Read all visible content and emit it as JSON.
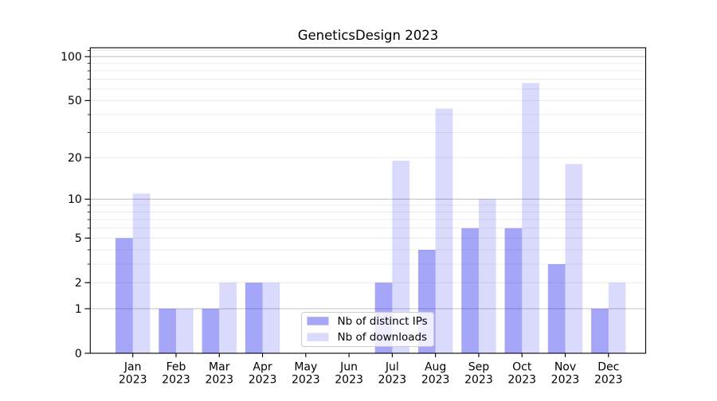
{
  "chart_data": {
    "type": "bar",
    "title": "GeneticsDesign 2023",
    "x_year_label": "2023",
    "categories": [
      "Jan",
      "Feb",
      "Mar",
      "Apr",
      "May",
      "Jun",
      "Jul",
      "Aug",
      "Sep",
      "Oct",
      "Nov",
      "Dec"
    ],
    "series": [
      {
        "name": "Nb of distinct IPs",
        "fill": "rgba(0,0,238,0.35)",
        "solid_hex": "#a6a6f9",
        "values": [
          5,
          1,
          1,
          2,
          0,
          0,
          2,
          4,
          6,
          6,
          3,
          1
        ]
      },
      {
        "name": "Nb of downloads",
        "fill": "rgba(0,0,238,0.145)",
        "solid_hex": "#d9d9fb",
        "values": [
          11,
          1,
          2,
          2,
          0,
          0,
          19,
          44,
          10,
          66,
          18,
          2
        ]
      }
    ],
    "y_scale": "log1p",
    "ylim": [
      0,
      115
    ],
    "y_tick_labels": [
      "0",
      "1",
      "2",
      "5",
      "10",
      "20",
      "50",
      "100"
    ],
    "y_tick_values": [
      0,
      1,
      2,
      5,
      10,
      20,
      50,
      100
    ],
    "grid": {
      "major_values": [
        1,
        10,
        100
      ],
      "minor_values": [
        2,
        3,
        4,
        5,
        6,
        7,
        8,
        9,
        20,
        30,
        40,
        50,
        60,
        70,
        80,
        90,
        110
      ],
      "major_color": "#c3c3c3",
      "minor_color": "#ececec"
    },
    "legend": {
      "position": "lower center",
      "frame_border_color": "#cccccc",
      "frame_fill": "rgba(255,255,255,0.8)"
    },
    "axis_color": "#000000",
    "text_color": "#000000",
    "background_color": "#ffffff"
  }
}
